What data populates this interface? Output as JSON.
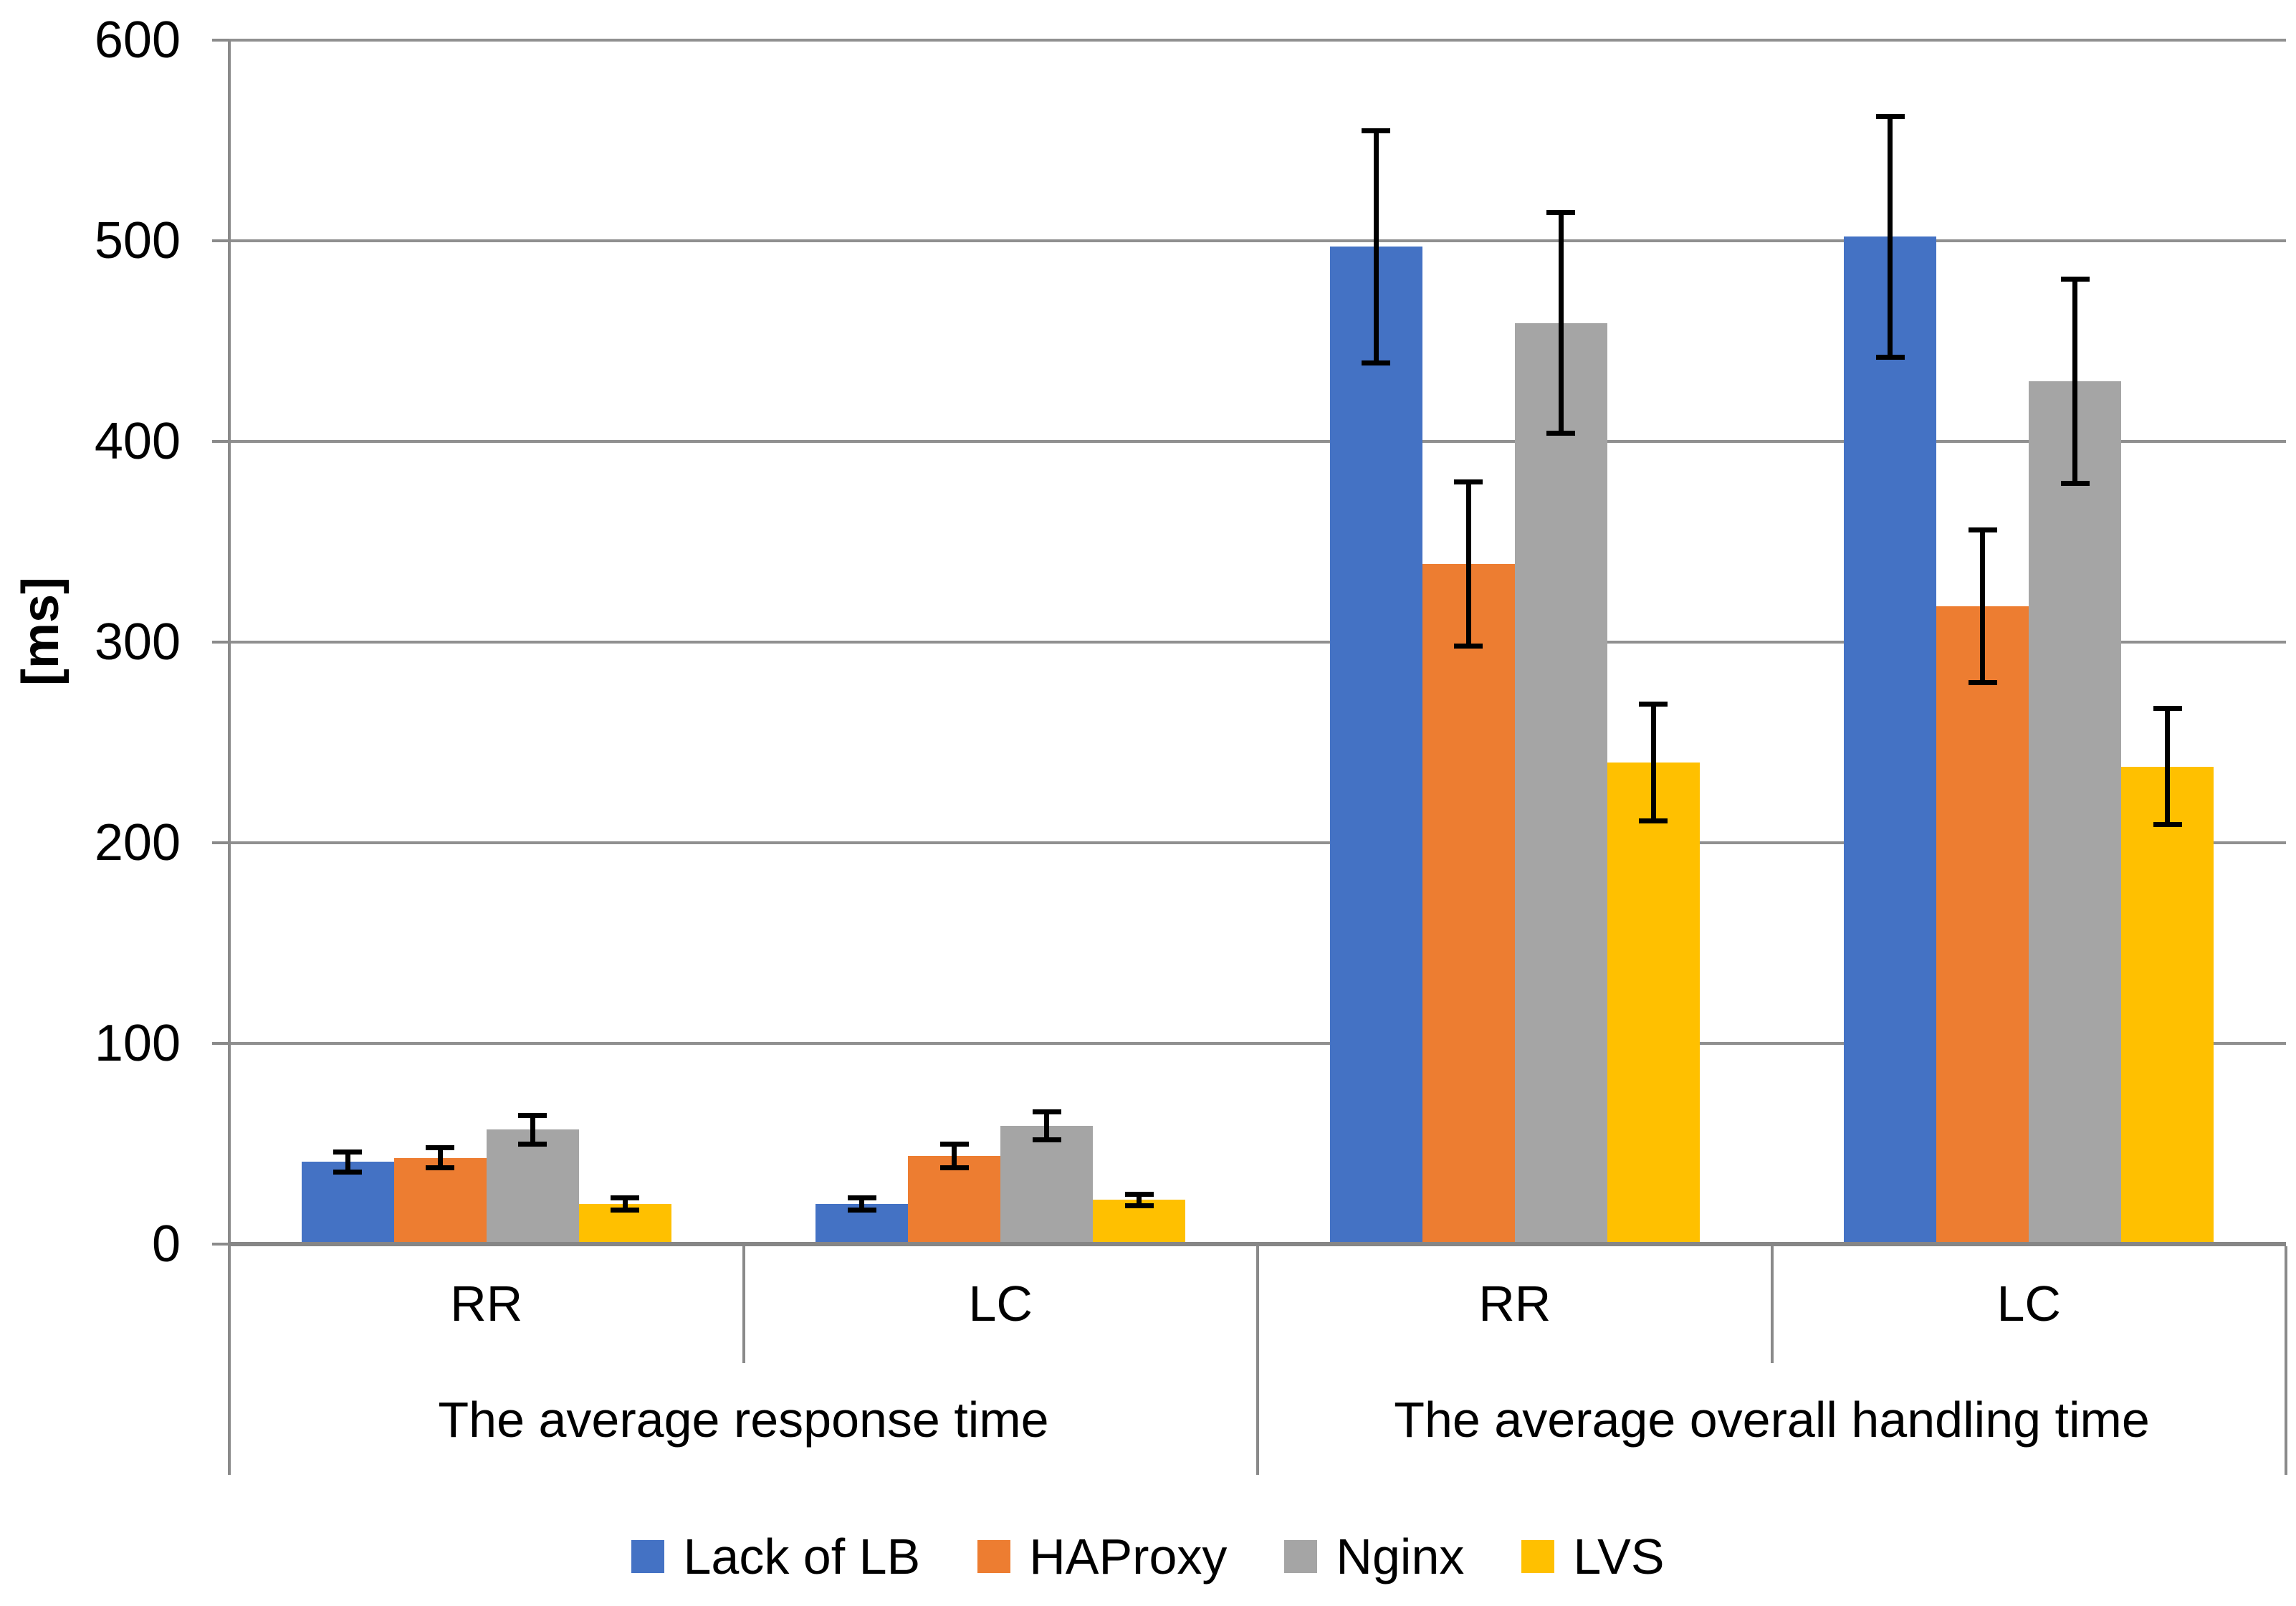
{
  "chart_data": {
    "type": "bar",
    "title": "",
    "ylabel": "[ms]",
    "xlabel": "",
    "ylim": [
      0,
      600
    ],
    "yticks": [
      0,
      100,
      200,
      300,
      400,
      500,
      600
    ],
    "grid": true,
    "legend_position": "bottom-center",
    "categories": [
      "RR",
      "LC",
      "RR",
      "LC"
    ],
    "axis_groups": [
      {
        "label": "The average response time",
        "category_span": [
          0,
          2
        ]
      },
      {
        "label": "The average overall handling time",
        "category_span": [
          2,
          4
        ]
      }
    ],
    "series": [
      {
        "name": "Lack of LB",
        "color": "#4472C4",
        "values": [
          41,
          20,
          497,
          502
        ],
        "errors": [
          5,
          3,
          58,
          60
        ]
      },
      {
        "name": "HAProxy",
        "color": "#ED7D31",
        "values": [
          43,
          44,
          339,
          318
        ],
        "errors": [
          5,
          6,
          41,
          38
        ]
      },
      {
        "name": "Nginx",
        "color": "#A5A5A5",
        "values": [
          57,
          59,
          459,
          430
        ],
        "errors": [
          7,
          7,
          55,
          51
        ]
      },
      {
        "name": "LVS",
        "color": "#FFC000",
        "values": [
          20,
          22,
          240,
          238
        ],
        "errors": [
          3,
          3,
          29,
          29
        ]
      }
    ],
    "error_bar_color": "#000000",
    "gridline_color": "#909090",
    "axis_color": "#8a8a8a"
  }
}
